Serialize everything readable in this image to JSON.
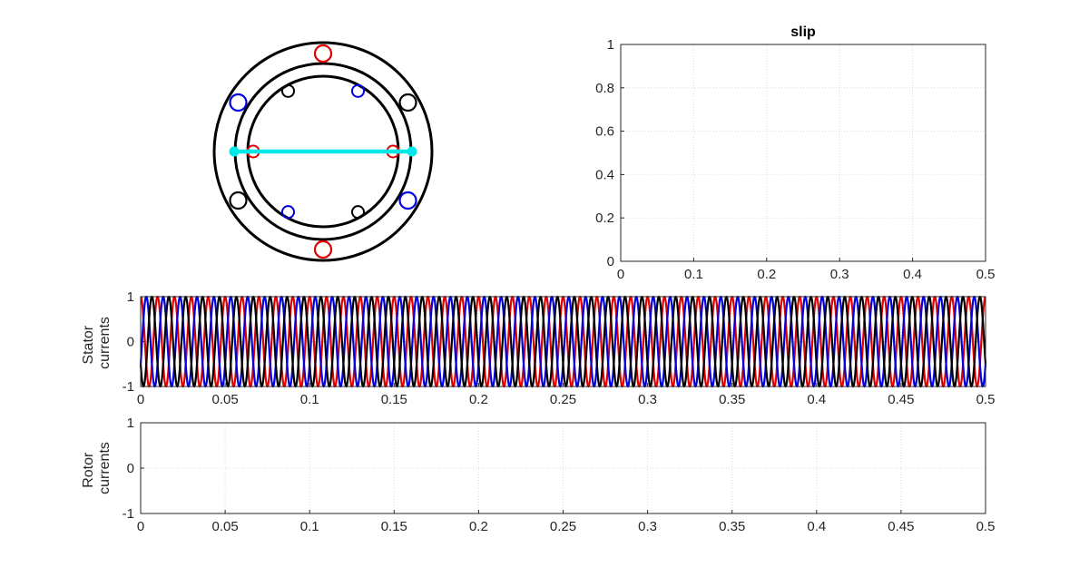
{
  "colors": {
    "phase_a": "#e00000",
    "phase_b": "#0000e0",
    "phase_c": "#000000",
    "rotor_bar": "#00e8e8",
    "axis": "#262626",
    "grid": "#dcdcdc"
  },
  "machine_diagram": {
    "type": "induction-machine-cross-section",
    "stator_conductors": [
      {
        "angle_deg": 90,
        "phase": "a"
      },
      {
        "angle_deg": 270,
        "phase": "a"
      },
      {
        "angle_deg": 150,
        "phase": "b"
      },
      {
        "angle_deg": 330,
        "phase": "b"
      },
      {
        "angle_deg": 30,
        "phase": "c"
      },
      {
        "angle_deg": 210,
        "phase": "c"
      }
    ],
    "rotor_conductors": [
      {
        "angle_deg": 0,
        "phase": "a"
      },
      {
        "angle_deg": 180,
        "phase": "a"
      },
      {
        "angle_deg": 60,
        "phase": "b"
      },
      {
        "angle_deg": 240,
        "phase": "b"
      },
      {
        "angle_deg": 120,
        "phase": "c"
      },
      {
        "angle_deg": 300,
        "phase": "c"
      }
    ],
    "rotor_axis_angle_deg": 0
  },
  "chart_data": [
    {
      "type": "line",
      "title": "slip",
      "xlabel": "",
      "ylabel": "",
      "xlim": [
        0,
        0.5
      ],
      "ylim": [
        0,
        1
      ],
      "xticks": [
        "0",
        "0.1",
        "0.2",
        "0.3",
        "0.4",
        "0.5"
      ],
      "yticks": [
        "0",
        "0.2",
        "0.4",
        "0.6",
        "0.8",
        "1"
      ],
      "grid": true,
      "series": []
    },
    {
      "type": "line",
      "title": "",
      "xlabel": "",
      "ylabel": "Stator currents",
      "ylabel_lines": [
        "Stator",
        "currents"
      ],
      "xlim": [
        0,
        0.5
      ],
      "ylim": [
        -1,
        1
      ],
      "xticks": [
        "0",
        "0.05",
        "0.1",
        "0.15",
        "0.2",
        "0.25",
        "0.3",
        "0.35",
        "0.4",
        "0.45",
        "0.5"
      ],
      "yticks": [
        "-1",
        "0",
        "1"
      ],
      "grid": true,
      "series": [
        {
          "function": "sin(2*pi*f*t + phase)",
          "frequency_hz": 100,
          "phase_deg": 90,
          "amplitude": 1,
          "color": "#e00000"
        },
        {
          "function": "sin(2*pi*f*t + phase)",
          "frequency_hz": 100,
          "phase_deg": -30,
          "amplitude": 1,
          "color": "#0000e0"
        },
        {
          "function": "sin(2*pi*f*t + phase)",
          "frequency_hz": 100,
          "phase_deg": 210,
          "amplitude": 1,
          "color": "#000000"
        }
      ]
    },
    {
      "type": "line",
      "title": "",
      "xlabel": "",
      "ylabel": "Rotor currents",
      "ylabel_lines": [
        "Rotor",
        "currents"
      ],
      "xlim": [
        0,
        0.5
      ],
      "ylim": [
        -1,
        1
      ],
      "xticks": [
        "0",
        "0.05",
        "0.1",
        "0.15",
        "0.2",
        "0.25",
        "0.3",
        "0.35",
        "0.4",
        "0.45",
        "0.5"
      ],
      "yticks": [
        "-1",
        "0",
        "1"
      ],
      "grid": true,
      "series": []
    }
  ]
}
